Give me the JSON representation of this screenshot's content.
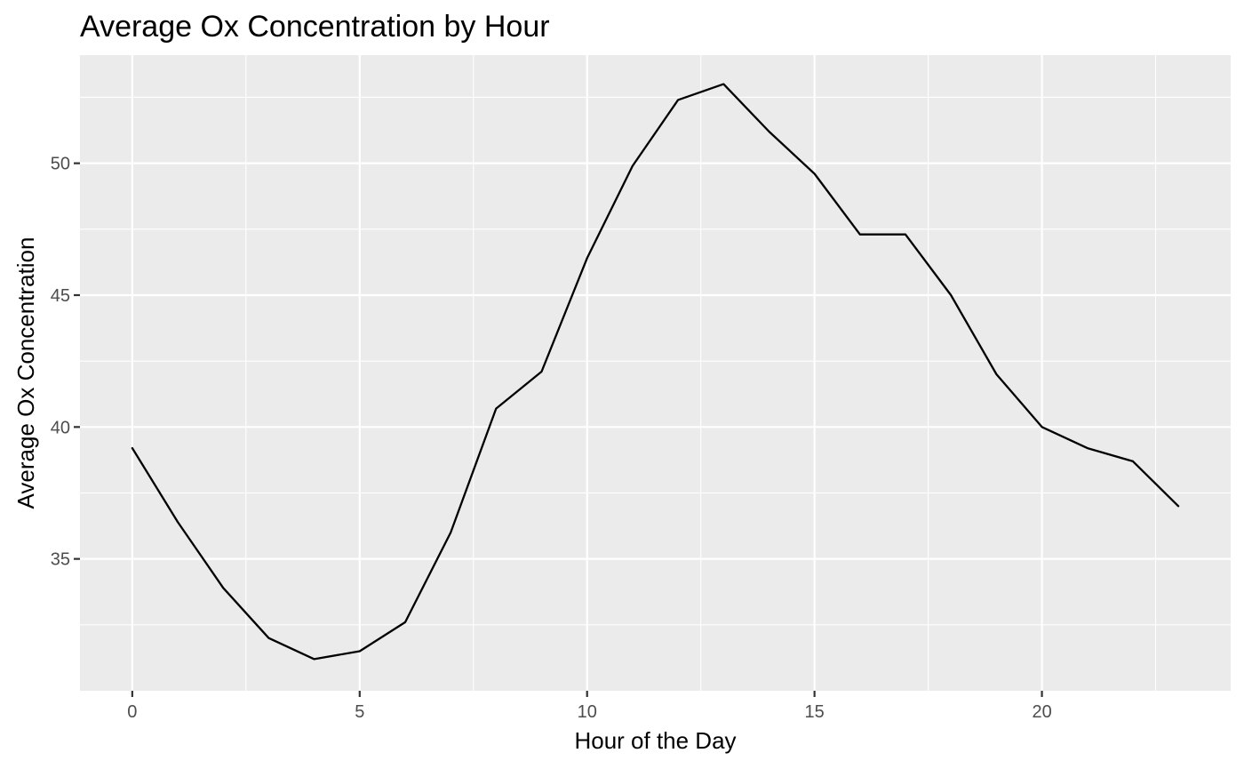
{
  "chart_data": {
    "type": "line",
    "title": "Average Ox Concentration by Hour",
    "xlabel": "Hour of the Day",
    "ylabel": "Average Ox Concentration",
    "xlim": [
      -1.15,
      24.15
    ],
    "ylim": [
      30.0,
      54.1
    ],
    "x_ticks": [
      0,
      5,
      10,
      15,
      20
    ],
    "y_ticks": [
      35,
      40,
      45,
      50
    ],
    "grid": true,
    "x": [
      0,
      1,
      2,
      3,
      4,
      5,
      6,
      7,
      8,
      9,
      10,
      11,
      12,
      13,
      14,
      15,
      16,
      17,
      18,
      19,
      20,
      21,
      22,
      23
    ],
    "values": [
      39.2,
      36.4,
      33.9,
      32.0,
      31.2,
      31.5,
      32.6,
      36.0,
      40.7,
      42.1,
      46.4,
      49.9,
      52.4,
      53.0,
      51.2,
      49.6,
      47.3,
      47.3,
      45.0,
      42.0,
      40.0,
      39.2,
      38.7,
      37.0
    ]
  }
}
